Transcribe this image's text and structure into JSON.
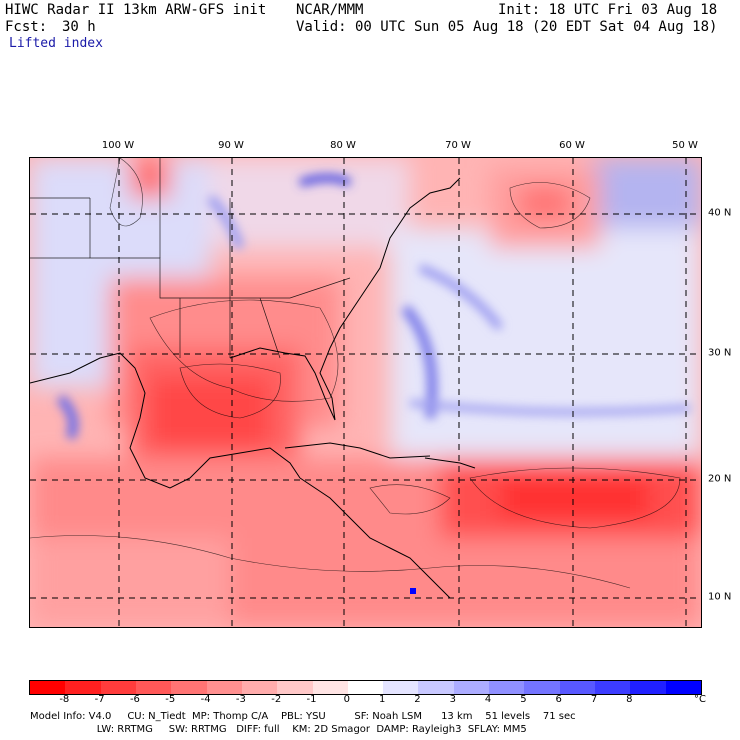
{
  "header": {
    "model_title": "HIWC Radar II 13km ARW-GFS init",
    "org": "NCAR/MMM",
    "init": "Init: 18 UTC Fri 03 Aug 18",
    "fcst_label": "Fcst:",
    "fcst_value": "30 h",
    "valid": "Valid: 00 UTC Sun 05 Aug 18 (20 EDT Sat 04 Aug 18)",
    "field": "Lifted index"
  },
  "axes": {
    "lon_labels": [
      "100 W",
      "90 W",
      "80 W",
      "70 W",
      "60 W",
      "50 W"
    ],
    "lat_labels": [
      "40 N",
      "30 N",
      "20 N",
      "10 N"
    ]
  },
  "colorbar": {
    "ticks": [
      "-8",
      "-7",
      "-6",
      "-5",
      "-4",
      "-3",
      "-2",
      "-1",
      "0",
      "1",
      "2",
      "3",
      "4",
      "5",
      "6",
      "7",
      "8"
    ],
    "unit": "°C",
    "colors": [
      "#ff0000",
      "#ff2020",
      "#ff3c3c",
      "#ff5858",
      "#ff7474",
      "#ff9090",
      "#ffacac",
      "#ffc8c8",
      "#ffe4e4",
      "#ffffff",
      "#e4e4ff",
      "#c8c8ff",
      "#acacff",
      "#9090ff",
      "#7474ff",
      "#5858ff",
      "#3c3cff",
      "#2020ff",
      "#0000ff"
    ]
  },
  "footer": {
    "line1": "Model Info: V4.0     CU: N_Tiedt  MP: Thomp C/A    PBL: YSU         SF: Noah LSM      13 km    51 levels    71 sec",
    "line2": "                     LW: RRTMG     SW: RRTMG   DIFF: full    KM: 2D Smagor  DAMP: Rayleigh3  SFLAY: MM5"
  }
}
